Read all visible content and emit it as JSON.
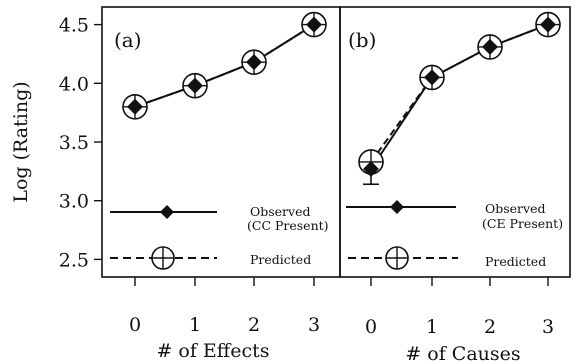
{
  "chart_data": [
    {
      "type": "line",
      "panel_label": "(a)",
      "xlabel": "# of Effects",
      "ylabel": "Log (Rating)",
      "categories": [
        "0",
        "1",
        "2",
        "3"
      ],
      "x": [
        0,
        1,
        2,
        3
      ],
      "ylim": [
        2.35,
        4.65
      ],
      "yticks": [
        "2.5",
        "3.0",
        "3.5",
        "4.0",
        "4.5"
      ],
      "series": [
        {
          "name": "Observed (CC Present)",
          "values": [
            3.8,
            3.98,
            4.18,
            4.5
          ],
          "marker": "diamond",
          "line": "solid"
        },
        {
          "name": "Predicted",
          "values": [
            3.8,
            3.98,
            4.18,
            4.5
          ],
          "marker": "circle-plus",
          "line": "dashed"
        }
      ],
      "legend": {
        "observed_line1": "Observed",
        "observed_line2": "(CC Present)",
        "predicted": "Predicted"
      }
    },
    {
      "type": "line",
      "panel_label": "(b)",
      "xlabel": "# of Causes",
      "categories": [
        "0",
        "1",
        "2",
        "3"
      ],
      "x": [
        0,
        1,
        2,
        3
      ],
      "ylim": [
        2.35,
        4.65
      ],
      "series": [
        {
          "name": "Observed (CE Present)",
          "values": [
            3.27,
            4.05,
            4.31,
            4.5
          ],
          "error_low": [
            3.14,
            null,
            null,
            null
          ],
          "marker": "diamond",
          "line": "solid"
        },
        {
          "name": "Predicted",
          "values": [
            3.33,
            4.05,
            4.31,
            4.5
          ],
          "marker": "circle-plus",
          "line": "dashed"
        }
      ],
      "legend": {
        "observed_line1": "Observed",
        "observed_line2": "(CE Present)",
        "predicted": "Predicted"
      }
    }
  ]
}
